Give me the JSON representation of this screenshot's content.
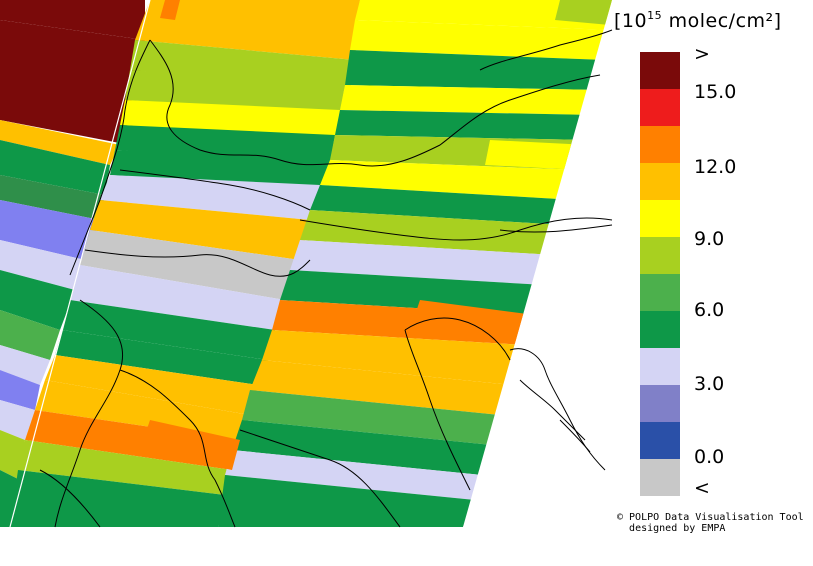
{
  "legend": {
    "unit_prefix": "[10",
    "unit_exponent": "15",
    "unit_suffix": " molec/cm²]",
    "ticks": [
      ">",
      "15.0",
      "12.0",
      "9.0",
      "6.0",
      "3.0",
      "0.0",
      "<"
    ],
    "colors": [
      "#7a0a0a",
      "#ee1c1c",
      "#ff8000",
      "#ffc000",
      "#ffff00",
      "#a8d020",
      "#4cb04c",
      "#0e9848",
      "#d4d4f4",
      "#8080c8",
      "#2a50a8",
      "#c8c8c8"
    ]
  },
  "credit": {
    "line1": "© POLPO Data Visualisation Tool",
    "line2": "designed by EMPA"
  }
}
